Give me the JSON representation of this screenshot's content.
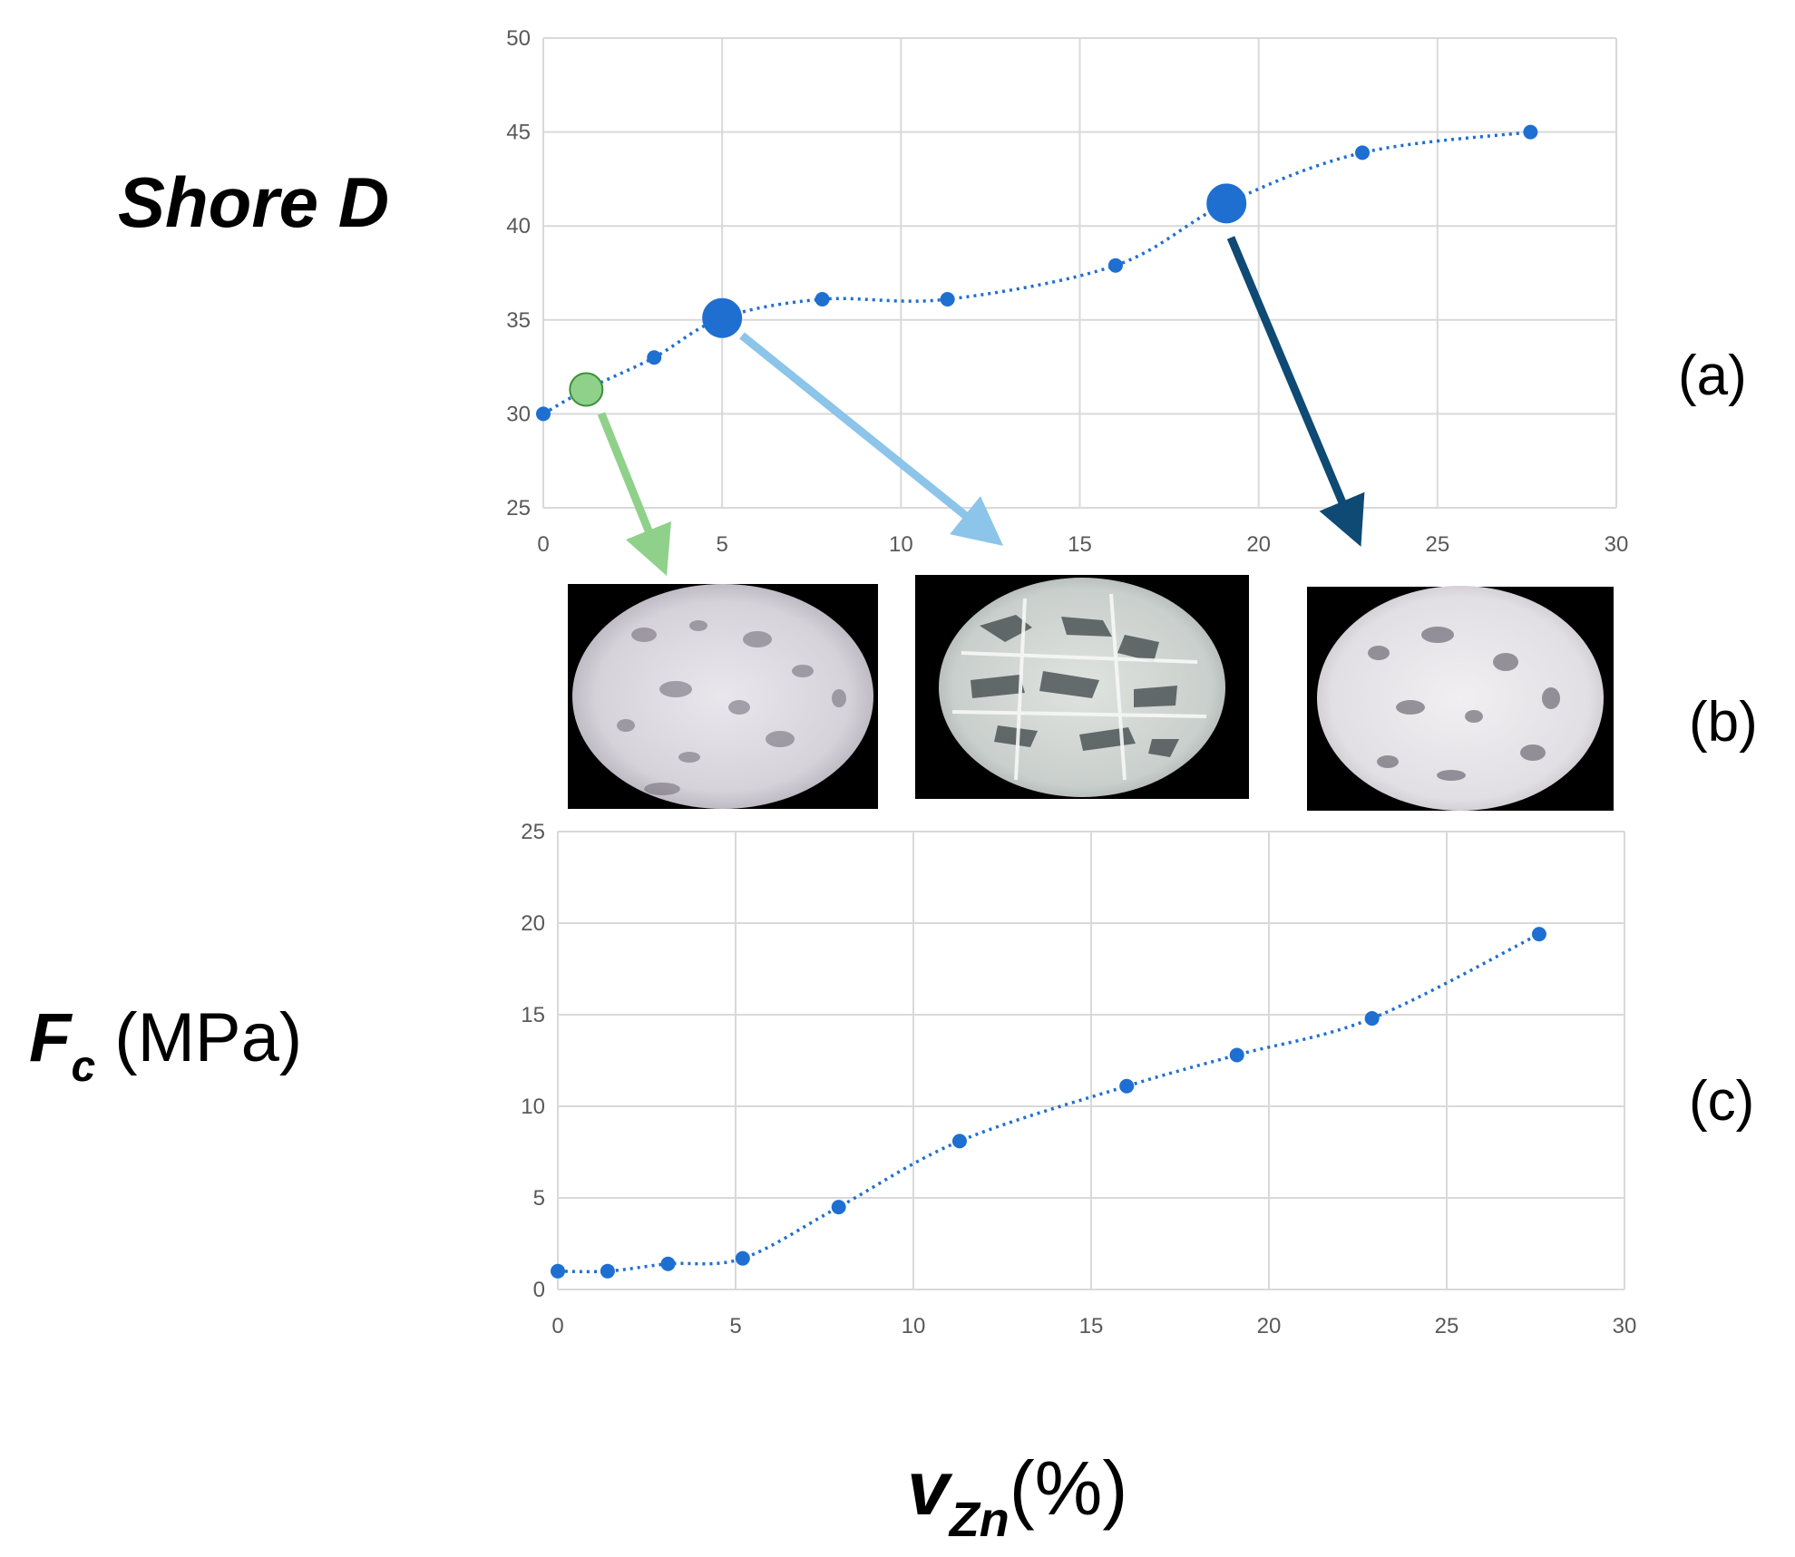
{
  "labels": {
    "shore_title": "Shore D",
    "fc_symbol": "F",
    "fc_sub": "c",
    "fc_unit": " (MPa)",
    "x_symbol": "v",
    "x_sub": "Zn",
    "x_unit": "(%)",
    "panel_a": "(a)",
    "panel_b": "(b)",
    "panel_c": "(c)"
  },
  "chart_data": [
    {
      "type": "scatter",
      "panel": "(a)",
      "ylabel": "Shore D",
      "xlabel": "vZn(%)",
      "xlim": [
        0,
        30
      ],
      "ylim": [
        25,
        50
      ],
      "xticks": [
        0,
        5,
        10,
        15,
        20,
        25,
        30
      ],
      "yticks": [
        25,
        30,
        35,
        40,
        45,
        50
      ],
      "grid": true,
      "trendline": "dotted smooth",
      "color": "#1f6fd1",
      "series": [
        {
          "x": [
            0,
            1.2,
            3.1,
            5,
            7.8,
            11.3,
            16,
            19.1,
            22.9,
            27.6
          ],
          "y": [
            30,
            31.3,
            33,
            35.1,
            36.1,
            36.1,
            37.9,
            41.2,
            43.9,
            45
          ]
        }
      ],
      "highlighted": [
        {
          "x": 1.2,
          "y": 31.3,
          "color": "#8fd18a",
          "image": "left"
        },
        {
          "x": 5,
          "y": 35.1,
          "color": "#1f6fd1",
          "image": "middle"
        },
        {
          "x": 19.1,
          "y": 41.2,
          "color": "#1f6fd1",
          "image": "right"
        }
      ],
      "arrow_colors": [
        "#8fd18a",
        "#8cc4ea",
        "#0e4a73"
      ]
    },
    {
      "type": "scatter",
      "panel": "(c)",
      "ylabel": "Fc (MPa)",
      "xlabel": "vZn(%)",
      "xlim": [
        0,
        30
      ],
      "ylim": [
        0,
        25
      ],
      "xticks": [
        0,
        5,
        10,
        15,
        20,
        25,
        30
      ],
      "yticks": [
        0,
        5,
        10,
        15,
        20,
        25
      ],
      "grid": true,
      "trendline": "dotted smooth",
      "color": "#1f6fd1",
      "series": [
        {
          "x": [
            0,
            1.4,
            3.1,
            5.2,
            7.9,
            11.3,
            16,
            19.1,
            22.9,
            27.6
          ],
          "y": [
            1,
            1,
            1.4,
            1.7,
            4.5,
            8.1,
            11.1,
            12.8,
            14.8,
            19.4
          ]
        }
      ]
    }
  ],
  "micrographs": [
    "left",
    "middle",
    "right"
  ]
}
